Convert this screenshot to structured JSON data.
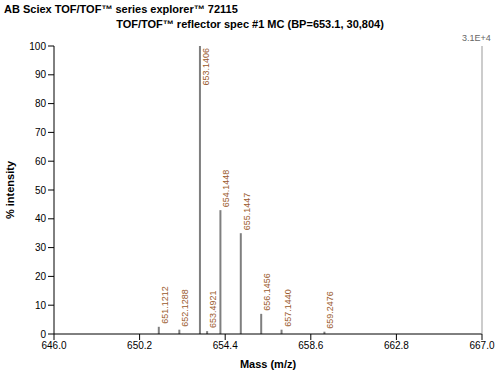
{
  "chart_data": {
    "type": "bar",
    "title": "AB Sciex TOF/TOF™ series explorer™ 72115",
    "subtitle": "TOF/TOF™ reflector spec #1 MC (BP=653.1, 30,804)",
    "x_label": "Mass (m/z)",
    "y_label": "% intensity",
    "annotations": [
      "3.1E+4"
    ],
    "x": [
      651.1212,
      652.1288,
      653.1406,
      653.4921,
      654.1448,
      655.1447,
      656.1456,
      657.144,
      659.2476
    ],
    "values": [
      2.5,
      1.5,
      100,
      1,
      43,
      35,
      7,
      1.5,
      0.8
    ],
    "point_labels": [
      "651.1212",
      "652.1288",
      "653.1406",
      "653.4921",
      "654.1448",
      "655.1447",
      "656.1456",
      "657.1440",
      "659.2476"
    ],
    "color": "#7f7f7f",
    "xlim": [
      646.0,
      667.0
    ],
    "xticks": [
      {
        "value": 646.0,
        "label": "646.0"
      },
      {
        "value": 650.2,
        "label": "650.2"
      },
      {
        "value": 654.4,
        "label": "654.4"
      },
      {
        "value": 658.6,
        "label": "658.6"
      },
      {
        "value": 662.8,
        "label": "662.8"
      },
      {
        "value": 667.0,
        "label": "667.0"
      }
    ],
    "ylim": [
      0,
      100
    ],
    "yticks": [
      0,
      10,
      20,
      30,
      40,
      50,
      60,
      70,
      80,
      90,
      100
    ],
    "grid": false
  }
}
